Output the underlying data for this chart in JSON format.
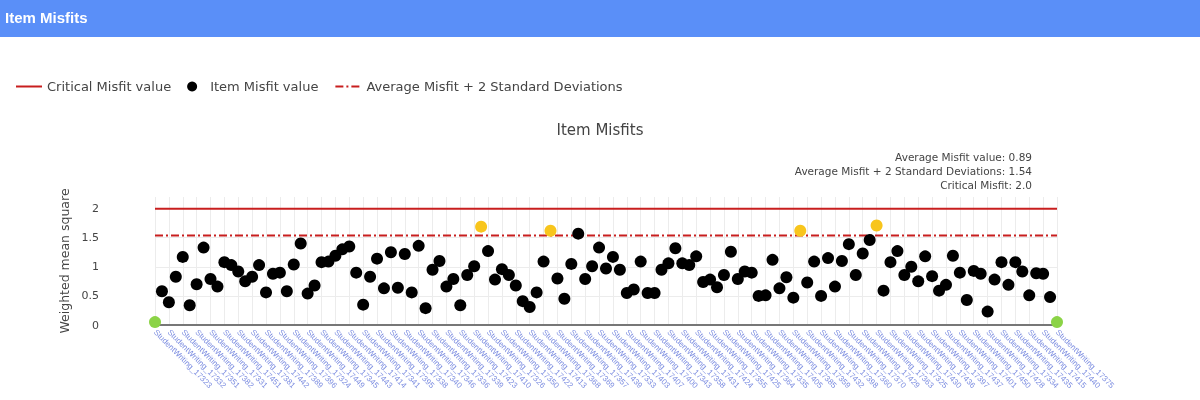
{
  "chart_data": {
    "type": "scatter",
    "title": "Item Misfits",
    "subtitle": "Item Misfits",
    "ylabel": "Weighted mean square",
    "annotations": [
      "Average Misfit value: 0.89",
      "Average Misfit + 2 Standard Deviations: 1.54",
      "Critical Misfit: 2.0"
    ],
    "categories": [
      "StudentWriting_17323",
      null,
      "StudentWriting_17332",
      null,
      "StudentWriting_17351",
      null,
      "StudentWriting_17382",
      null,
      "StudentWriting_17331",
      null,
      "StudentWriting_17451",
      null,
      "StudentWriting_17381",
      null,
      "StudentWriting_17442",
      null,
      "StudentWriting_17389",
      null,
      "StudentWriting_17396",
      null,
      "StudentWriting_17324",
      null,
      "StudentWriting_17449",
      null,
      "StudentWriting_17345",
      null,
      "StudentWriting_17443",
      null,
      "StudentWriting_17414",
      null,
      "StudentWriting_17341",
      null,
      "StudentWriting_17395",
      null,
      "StudentWriting_17338",
      null,
      "StudentWriting_17340",
      null,
      "StudentWriting_17346",
      null,
      "StudentWriting_17336",
      null,
      "StudentWriting_17339",
      null,
      "StudentWriting_17423",
      null,
      "StudentWriting_17410",
      null,
      "StudentWriting_17326",
      null,
      "StudentWriting_17350",
      null,
      "StudentWriting_17422",
      null,
      "StudentWriting_17413",
      null,
      "StudentWriting_17368",
      null,
      "StudentWriting_17369",
      null,
      "StudentWriting_17357",
      null,
      "StudentWriting_17439",
      null,
      "StudentWriting_17333",
      null,
      "StudentWriting_17403",
      null,
      "StudentWriting_17407",
      null,
      "StudentWriting_17400",
      null,
      "StudentWriting_17343",
      null,
      "StudentWriting_17358",
      null,
      "StudentWriting_17431",
      null,
      "StudentWriting_17424",
      null,
      "StudentWriting_17355",
      null,
      "StudentWriting_17425",
      null,
      "StudentWriting_17364",
      null,
      "StudentWriting_17335",
      null,
      "StudentWriting_17405",
      null,
      "StudentWriting_17385",
      null,
      "StudentWriting_17359",
      null,
      "StudentWriting_17432",
      null,
      "StudentWriting_17398",
      null,
      "StudentWriting_17360",
      null,
      "StudentWriting_17370",
      null,
      "StudentWriting_17429",
      null,
      "StudentWriting_17363",
      null,
      "StudentWriting_17325",
      null,
      "StudentWriting_17430",
      null,
      "StudentWriting_17436",
      null,
      "StudentWriting_17397",
      null,
      "StudentWriting_17437",
      null,
      "StudentWriting_17401",
      null,
      "StudentWriting_17450",
      null,
      "StudentWriting_17428",
      null,
      "StudentWriting_17334",
      null,
      "StudentWriting_17435",
      null,
      "StudentWriting_17415",
      null,
      "StudentWriting_17440",
      null,
      "StudentWriting_17375"
    ],
    "series": [
      {
        "name": "Item Misfit value",
        "color": "#000000",
        "values": [
          0.05,
          0.58,
          0.39,
          0.83,
          1.17,
          0.34,
          0.7,
          1.33,
          0.79,
          0.66,
          1.08,
          1.03,
          0.92,
          0.75,
          0.83,
          1.03,
          0.56,
          0.88,
          0.9,
          0.58,
          1.04,
          1.4,
          0.54,
          0.68,
          1.08,
          1.09,
          1.19,
          1.3,
          1.35,
          0.9,
          0.35,
          0.83,
          1.14,
          0.63,
          1.25,
          0.64,
          1.22,
          0.56,
          1.36,
          0.29,
          0.95,
          1.1,
          0.66,
          0.79,
          0.34,
          0.86,
          1.01,
          1.69,
          1.27,
          0.78,
          0.96,
          0.86,
          0.68,
          0.41,
          0.31,
          0.56,
          1.09,
          1.62,
          0.8,
          0.45,
          1.05,
          1.57,
          0.79,
          1.01,
          1.33,
          0.97,
          1.17,
          0.95,
          0.55,
          0.61,
          1.09,
          0.55,
          0.55,
          0.95,
          1.06,
          1.32,
          1.06,
          1.03,
          1.18,
          0.74,
          0.78,
          0.65,
          0.86,
          1.26,
          0.79,
          0.92,
          0.9,
          0.5,
          0.51,
          1.12,
          0.63,
          0.82,
          0.47,
          1.62,
          0.73,
          1.09,
          0.5,
          1.15,
          0.66,
          1.1,
          1.39,
          0.86,
          1.23,
          1.46,
          1.71,
          0.59,
          1.08,
          1.27,
          0.86,
          1.0,
          0.75,
          1.18,
          0.84,
          0.59,
          0.69,
          1.19,
          0.9,
          0.43,
          0.93,
          0.88,
          0.23,
          0.78,
          1.08,
          0.69,
          1.08,
          0.92,
          0.51,
          0.89,
          0.88,
          0.48,
          0.05
        ],
        "colors": [
          "#8bd346",
          "#000000",
          "#000000",
          "#000000",
          "#000000",
          "#000000",
          "#000000",
          "#000000",
          "#000000",
          "#000000",
          "#000000",
          "#000000",
          "#000000",
          "#000000",
          "#000000",
          "#000000",
          "#000000",
          "#000000",
          "#000000",
          "#000000",
          "#000000",
          "#000000",
          "#000000",
          "#000000",
          "#000000",
          "#000000",
          "#000000",
          "#000000",
          "#000000",
          "#000000",
          "#000000",
          "#000000",
          "#000000",
          "#000000",
          "#000000",
          "#000000",
          "#000000",
          "#000000",
          "#000000",
          "#000000",
          "#000000",
          "#000000",
          "#000000",
          "#000000",
          "#000000",
          "#000000",
          "#000000",
          "#f8c51c",
          "#000000",
          "#000000",
          "#000000",
          "#000000",
          "#000000",
          "#000000",
          "#000000",
          "#000000",
          "#000000",
          "#f8c51c",
          "#000000",
          "#000000",
          "#000000",
          "#000000",
          "#000000",
          "#000000",
          "#000000",
          "#000000",
          "#000000",
          "#000000",
          "#000000",
          "#000000",
          "#000000",
          "#000000",
          "#000000",
          "#000000",
          "#000000",
          "#000000",
          "#000000",
          "#000000",
          "#000000",
          "#000000",
          "#000000",
          "#000000",
          "#000000",
          "#000000",
          "#000000",
          "#000000",
          "#000000",
          "#000000",
          "#000000",
          "#000000",
          "#000000",
          "#000000",
          "#000000",
          "#f8c51c",
          "#000000",
          "#000000",
          "#000000",
          "#000000",
          "#000000",
          "#000000",
          "#000000",
          "#000000",
          "#000000",
          "#000000",
          "#f8c51c",
          "#000000",
          "#000000",
          "#000000",
          "#000000",
          "#000000",
          "#000000",
          "#000000",
          "#000000",
          "#000000",
          "#000000",
          "#000000",
          "#000000",
          "#000000",
          "#000000",
          "#000000",
          "#000000",
          "#000000",
          "#000000",
          "#000000",
          "#000000",
          "#000000",
          "#000000",
          "#000000",
          "#000000",
          "#000000",
          "#8bd346"
        ]
      }
    ],
    "ref_lines": [
      {
        "axis": "y",
        "value": 2.0,
        "label": "Critical Misfit value",
        "color": "#c81e1e",
        "line_style": "solid"
      },
      {
        "axis": "y",
        "value": 1.54,
        "label": "Average Misfit + 2 Standard Deviations",
        "color": "#c81e1e",
        "line_style": "dashdot"
      }
    ],
    "ylim": [
      0,
      2.2
    ],
    "yticks": [
      0,
      0.5,
      1,
      1.5,
      2
    ],
    "grid": true,
    "legend": "top left",
    "marker": "circle"
  }
}
